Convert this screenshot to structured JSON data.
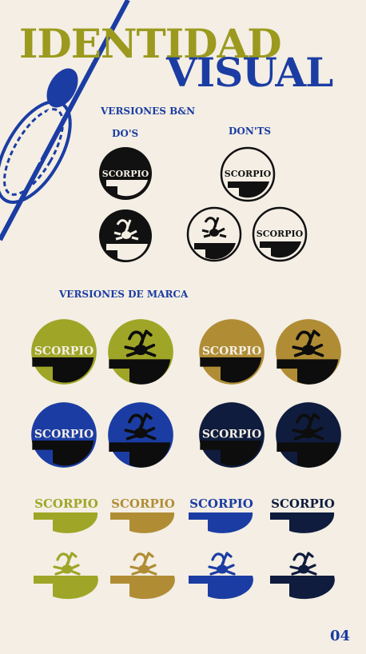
{
  "title": {
    "line1": "IDENTIDAD",
    "line2": "VISUAL"
  },
  "sections": {
    "bw": "VERSIONES B&N",
    "dos": "DO'S",
    "donts": "DON'TS",
    "brand": "VERSIONES DE MARCA"
  },
  "logo_word": "SCORPIO",
  "colors": {
    "olive": "#9fa627",
    "gold": "#b08d35",
    "blue": "#1b3da3",
    "navy": "#0f1c3d",
    "black": "#111111",
    "background": "#f4eee4"
  },
  "page_number": "04"
}
